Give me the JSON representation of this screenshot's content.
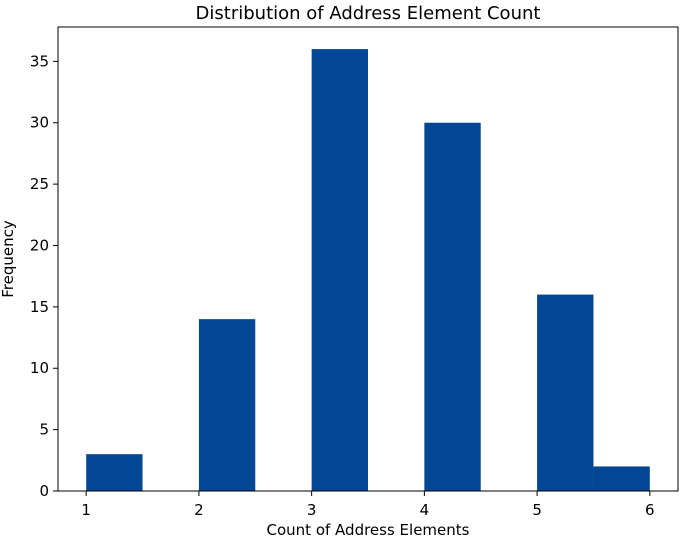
{
  "chart_data": {
    "type": "bar",
    "title": "Distribution of Address Element Count",
    "xlabel": "Count of Address Elements",
    "ylabel": "Frequency",
    "bins": [
      {
        "start": 1.0,
        "end": 1.5,
        "value": 3
      },
      {
        "start": 1.5,
        "end": 2.0,
        "value": 0
      },
      {
        "start": 2.0,
        "end": 2.5,
        "value": 14
      },
      {
        "start": 2.5,
        "end": 3.0,
        "value": 0
      },
      {
        "start": 3.0,
        "end": 3.5,
        "value": 36
      },
      {
        "start": 3.5,
        "end": 4.0,
        "value": 0
      },
      {
        "start": 4.0,
        "end": 4.5,
        "value": 30
      },
      {
        "start": 4.5,
        "end": 5.0,
        "value": 0
      },
      {
        "start": 5.0,
        "end": 5.5,
        "value": 16
      },
      {
        "start": 5.5,
        "end": 6.0,
        "value": 2
      }
    ],
    "xlim": [
      0.75,
      6.25
    ],
    "ylim": [
      0,
      37.8
    ],
    "xticks": [
      1,
      2,
      3,
      4,
      5,
      6
    ],
    "yticks": [
      0,
      5,
      10,
      15,
      20,
      25,
      30,
      35
    ],
    "bar_color": "#034693",
    "grid": false
  }
}
